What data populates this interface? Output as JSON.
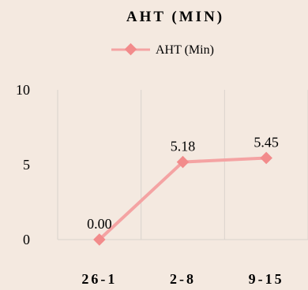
{
  "chart_data": {
    "type": "line",
    "title": "AHT (MIN)",
    "categories": [
      "26-1",
      "2-8",
      "9-15"
    ],
    "series": [
      {
        "name": "AHT (Min)",
        "values": [
          0.0,
          5.18,
          5.45
        ],
        "labels": [
          "0.00",
          "5.18",
          "5.45"
        ]
      }
    ],
    "ylim": [
      0,
      10
    ],
    "yticks": [
      "0",
      "5",
      "10"
    ],
    "grid": true,
    "legend": "top",
    "colors": {
      "line": "#f4a3a3",
      "marker": "#f28b8b",
      "grid": "#d9d2cc",
      "background": "#f4e9e0"
    }
  }
}
